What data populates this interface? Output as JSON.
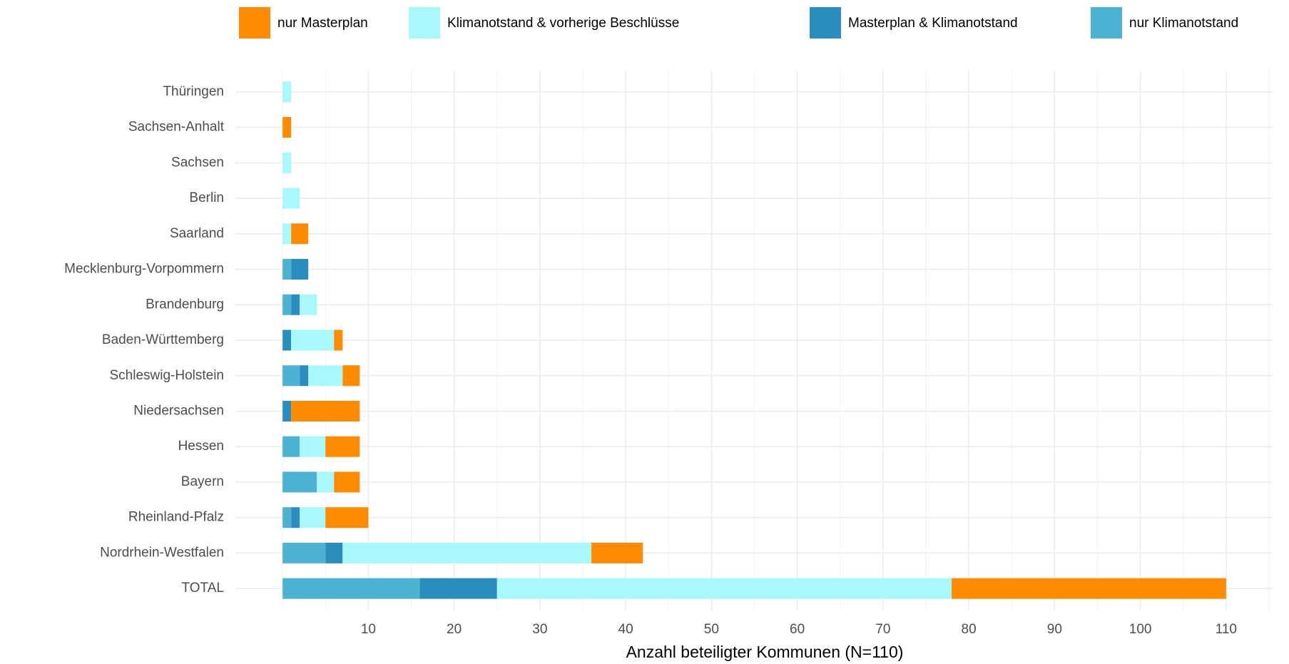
{
  "chart_data": {
    "type": "stacked_barh",
    "xlabel": "Anzahl beteiligter Kommunen (N=110)",
    "categories": [
      "Thüringen",
      "Sachsen-Anhalt",
      "Sachsen",
      "Berlin",
      "Saarland",
      "Mecklenburg-Vorpommern",
      "Brandenburg",
      "Baden-Württemberg",
      "Schleswig-Holstein",
      "Niedersachsen",
      "Hessen",
      "Bayern",
      "Rheinland-Pfalz",
      "Nordrhein-Westfalen",
      "TOTAL"
    ],
    "series": [
      {
        "name": "nur Masterplan",
        "color": "#ff8c00",
        "values": [
          0,
          1,
          0,
          0,
          2,
          0,
          0,
          1,
          2,
          8,
          4,
          3,
          5,
          6,
          32
        ]
      },
      {
        "name": "Klimanotstand & vorherige Beschlüsse",
        "color": "#a8f8fc",
        "values": [
          1,
          0,
          1,
          2,
          1,
          0,
          2,
          5,
          4,
          0,
          3,
          2,
          3,
          29,
          53
        ]
      },
      {
        "name": "Masterplan & Klimanotstand",
        "color": "#2b8cbe",
        "values": [
          0,
          0,
          0,
          0,
          0,
          2,
          1,
          1,
          1,
          1,
          0,
          0,
          1,
          2,
          9
        ]
      },
      {
        "name": "nur Klimanotstand",
        "color": "#4eb3d3",
        "values": [
          0,
          0,
          0,
          0,
          0,
          1,
          1,
          0,
          2,
          0,
          2,
          4,
          1,
          5,
          16
        ]
      }
    ],
    "xlim": [
      -5.5,
      115.5
    ],
    "xticks": [
      10,
      20,
      30,
      40,
      50,
      60,
      70,
      80,
      90,
      100,
      110
    ],
    "xminor_ticks": [
      0,
      5,
      15,
      25,
      35,
      45,
      55,
      65,
      75,
      85,
      95,
      105,
      115
    ],
    "grid": true,
    "legend": "top"
  }
}
